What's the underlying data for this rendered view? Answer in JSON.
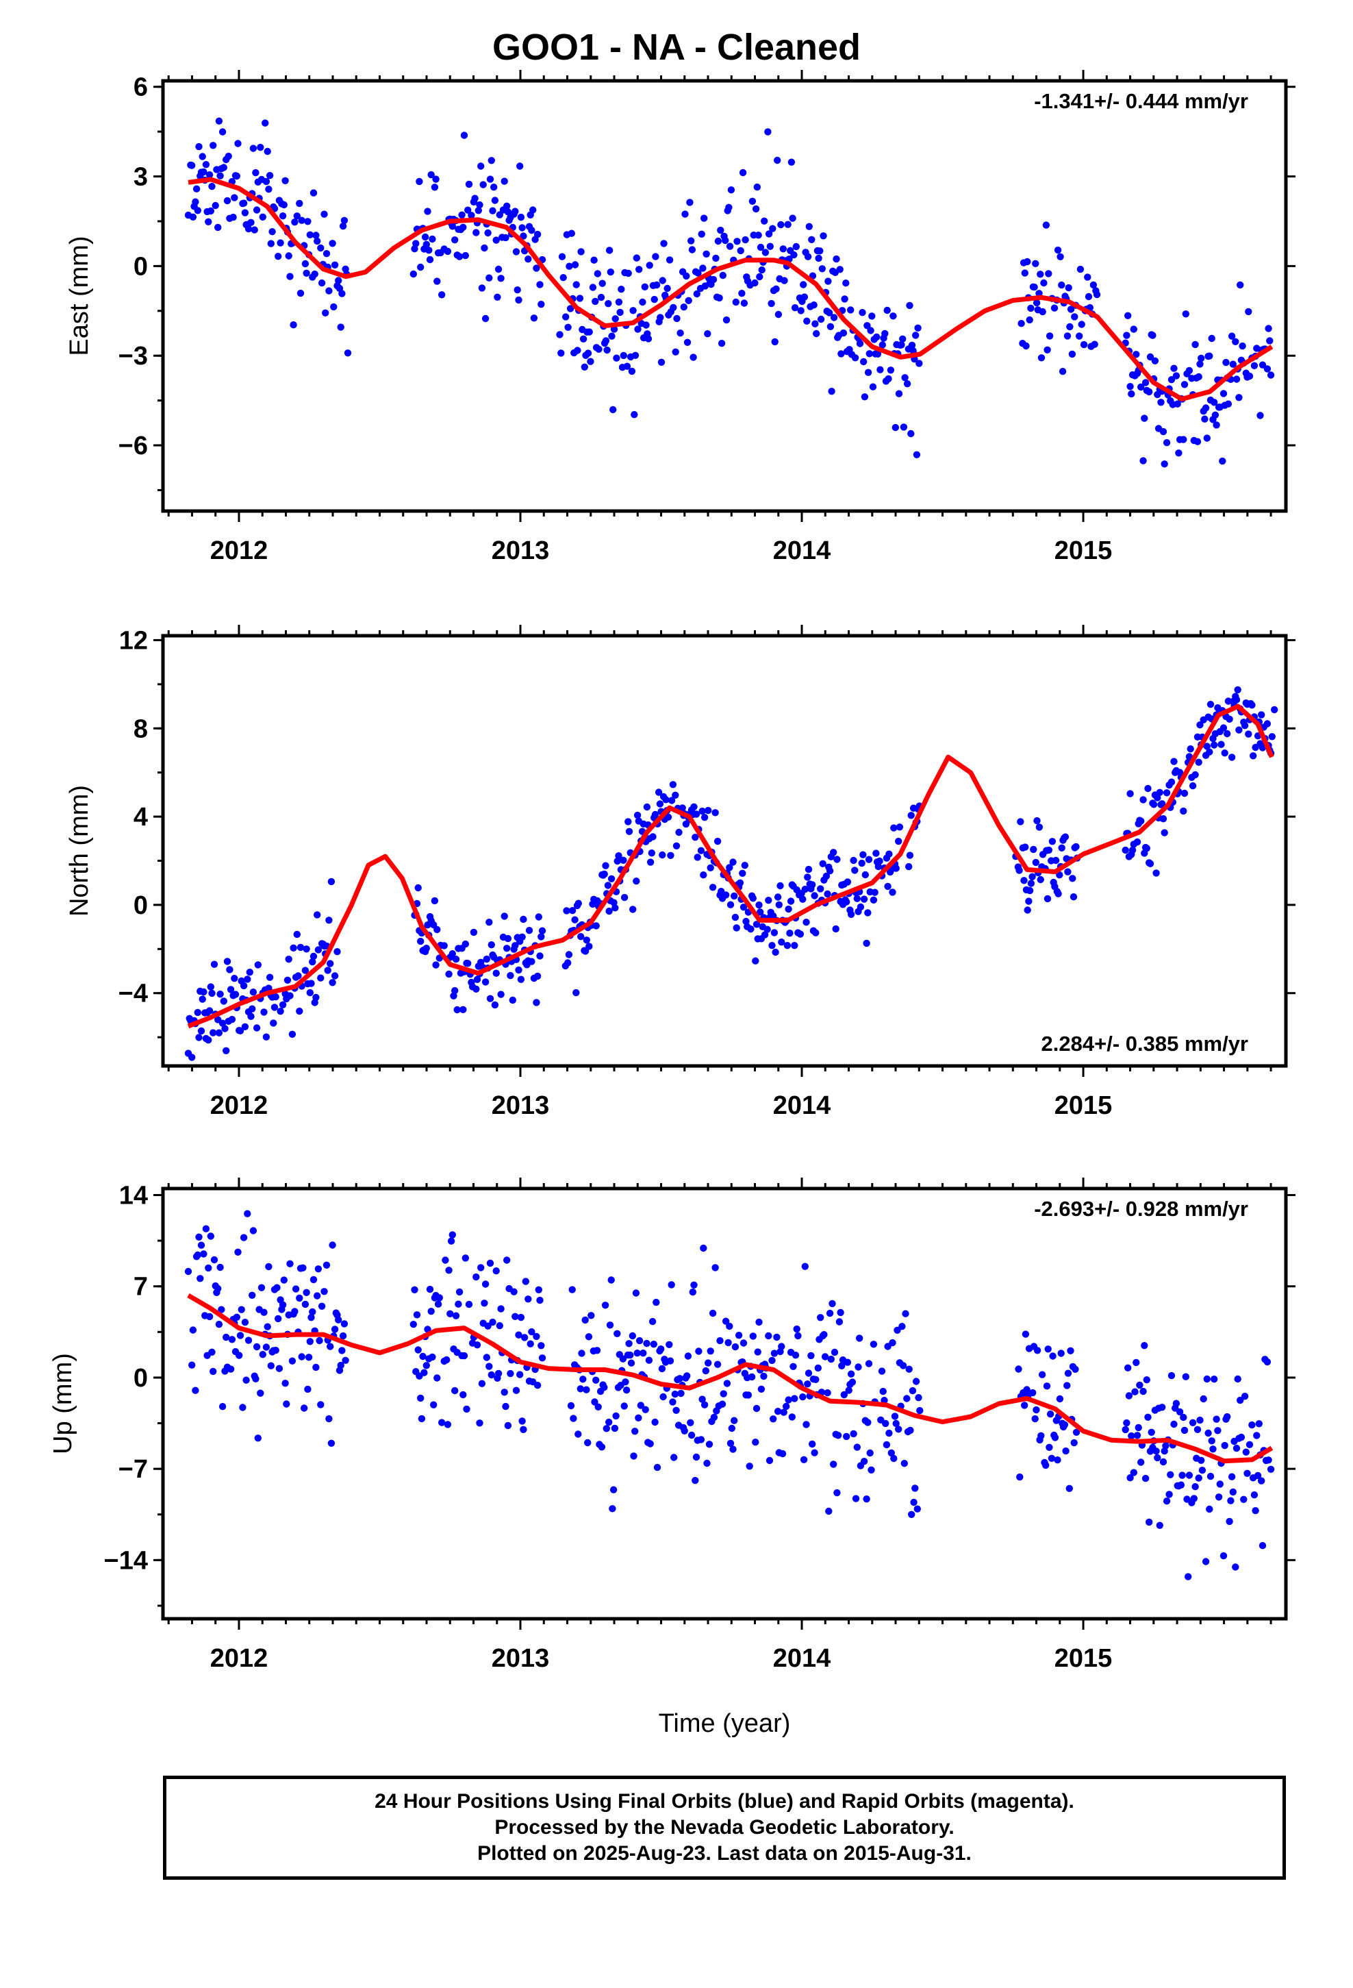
{
  "title": "GOO1  - NA - Cleaned",
  "x_axis_label": "Time (year)",
  "footer": [
    "24 Hour Positions Using Final Orbits (blue) and Rapid Orbits (magenta).",
    "Processed by the Nevada Geodetic Laboratory.",
    "Plotted on 2025-Aug-23. Last data on 2015-Aug-31."
  ],
  "colors": {
    "data": "#0000ff",
    "model": "#ff0000"
  },
  "chart_data": [
    {
      "type": "scatter",
      "ylabel": "East (mm)",
      "rate_label": "-1.341+/- 0.444 mm/yr",
      "rate_position": "top-right",
      "xlim": [
        2011.73,
        2015.72
      ],
      "ylim": [
        -8.2,
        6.2
      ],
      "xticks": [
        2012,
        2013,
        2014,
        2015
      ],
      "yticks": [
        6,
        3,
        0,
        -3,
        -6
      ],
      "ytick_labels": [
        "6",
        "3",
        "0",
        "−3",
        "−6"
      ],
      "data_segments": [
        [
          2011.82,
          2012.39
        ],
        [
          2012.62,
          2013.08
        ],
        [
          2013.14,
          2014.42
        ],
        [
          2014.78,
          2015.05
        ],
        [
          2015.15,
          2015.67
        ]
      ],
      "noise": 1.15,
      "seed": 11,
      "model": {
        "x": [
          2011.82,
          2011.9,
          2012.0,
          2012.1,
          2012.2,
          2012.3,
          2012.38,
          2012.45,
          2012.55,
          2012.65,
          2012.75,
          2012.85,
          2012.95,
          2013.02,
          2013.1,
          2013.2,
          2013.3,
          2013.4,
          2013.5,
          2013.6,
          2013.7,
          2013.8,
          2013.9,
          2013.95,
          2014.05,
          2014.15,
          2014.25,
          2014.35,
          2014.42,
          2014.55,
          2014.65,
          2014.75,
          2014.85,
          2014.95,
          2015.05,
          2015.15,
          2015.25,
          2015.35,
          2015.45,
          2015.55,
          2015.67
        ],
        "y": [
          2.8,
          2.9,
          2.6,
          2.0,
          0.8,
          -0.1,
          -0.35,
          -0.2,
          0.6,
          1.2,
          1.5,
          1.55,
          1.3,
          0.7,
          -0.3,
          -1.4,
          -2.0,
          -1.9,
          -1.3,
          -0.6,
          -0.1,
          0.2,
          0.2,
          0.1,
          -0.6,
          -1.8,
          -2.7,
          -3.05,
          -2.95,
          -2.1,
          -1.5,
          -1.15,
          -1.05,
          -1.2,
          -1.7,
          -2.8,
          -3.9,
          -4.45,
          -4.2,
          -3.4,
          -2.7
        ]
      }
    },
    {
      "type": "scatter",
      "ylabel": "North (mm)",
      "rate_label": "2.284+/- 0.385 mm/yr",
      "rate_position": "bottom-right",
      "xlim": [
        2011.73,
        2015.72
      ],
      "ylim": [
        -7.3,
        12.2
      ],
      "xticks": [
        2012,
        2013,
        2014,
        2015
      ],
      "yticks": [
        12,
        8,
        4,
        0,
        -4
      ],
      "ytick_labels": [
        "12",
        "8",
        "4",
        "0",
        "−4"
      ],
      "data_segments": [
        [
          2011.82,
          2012.35
        ],
        [
          2012.62,
          2013.08
        ],
        [
          2013.16,
          2013.6
        ],
        [
          2013.6,
          2014.35
        ],
        [
          2014.38,
          2014.42
        ],
        [
          2014.76,
          2014.98
        ],
        [
          2015.15,
          2015.68
        ]
      ],
      "noise": 0.95,
      "seed": 23,
      "model": {
        "x": [
          2011.82,
          2011.9,
          2012.0,
          2012.1,
          2012.2,
          2012.3,
          2012.4,
          2012.46,
          2012.52,
          2012.58,
          2012.65,
          2012.75,
          2012.85,
          2012.95,
          2013.05,
          2013.15,
          2013.25,
          2013.35,
          2013.45,
          2013.53,
          2013.6,
          2013.7,
          2013.8,
          2013.85,
          2013.95,
          2014.05,
          2014.15,
          2014.25,
          2014.35,
          2014.45,
          2014.52,
          2014.6,
          2014.7,
          2014.8,
          2014.9,
          2015.0,
          2015.1,
          2015.2,
          2015.3,
          2015.4,
          2015.48,
          2015.55,
          2015.62,
          2015.67
        ],
        "y": [
          -5.5,
          -5.1,
          -4.5,
          -4.0,
          -3.7,
          -2.6,
          0.0,
          1.8,
          2.2,
          1.2,
          -1.0,
          -2.7,
          -3.1,
          -2.5,
          -1.9,
          -1.6,
          -0.8,
          1.1,
          3.3,
          4.4,
          4.0,
          1.9,
          0.2,
          -0.7,
          -0.7,
          0.0,
          0.5,
          1.0,
          2.3,
          5.0,
          6.7,
          6.0,
          3.6,
          1.6,
          1.5,
          2.3,
          2.8,
          3.3,
          4.5,
          6.8,
          8.6,
          9.0,
          8.2,
          6.7
        ]
      }
    },
    {
      "type": "scatter",
      "ylabel": "Up (mm)",
      "rate_label": "-2.693+/- 0.928 mm/yr",
      "rate_position": "top-right",
      "xlim": [
        2011.73,
        2015.72
      ],
      "ylim": [
        -18.5,
        14.5
      ],
      "xticks": [
        2012,
        2013,
        2014,
        2015
      ],
      "yticks": [
        14,
        7,
        0,
        -7,
        -14
      ],
      "ytick_labels": [
        "14",
        "7",
        "0",
        "−7",
        "−14"
      ],
      "data_segments": [
        [
          2011.82,
          2012.38
        ],
        [
          2012.62,
          2013.08
        ],
        [
          2013.18,
          2014.42
        ],
        [
          2014.77,
          2014.98
        ],
        [
          2015.15,
          2015.67
        ]
      ],
      "noise": 3.4,
      "seed": 37,
      "model": {
        "x": [
          2011.82,
          2011.9,
          2012.0,
          2012.1,
          2012.2,
          2012.3,
          2012.4,
          2012.5,
          2012.6,
          2012.7,
          2012.8,
          2012.9,
          2013.0,
          2013.1,
          2013.2,
          2013.3,
          2013.4,
          2013.5,
          2013.6,
          2013.7,
          2013.8,
          2013.9,
          2014.0,
          2014.1,
          2014.2,
          2014.3,
          2014.4,
          2014.5,
          2014.6,
          2014.7,
          2014.8,
          2014.9,
          2015.0,
          2015.1,
          2015.2,
          2015.3,
          2015.4,
          2015.5,
          2015.6,
          2015.67
        ],
        "y": [
          6.3,
          5.3,
          3.8,
          3.2,
          3.3,
          3.3,
          2.5,
          1.9,
          2.6,
          3.6,
          3.8,
          2.6,
          1.2,
          0.7,
          0.6,
          0.6,
          0.2,
          -0.5,
          -0.8,
          0.0,
          1.0,
          0.6,
          -0.8,
          -1.8,
          -1.9,
          -2.1,
          -2.9,
          -3.4,
          -3.0,
          -2.0,
          -1.6,
          -2.4,
          -4.1,
          -4.8,
          -4.9,
          -4.8,
          -5.5,
          -6.4,
          -6.3,
          -5.4
        ]
      }
    }
  ]
}
